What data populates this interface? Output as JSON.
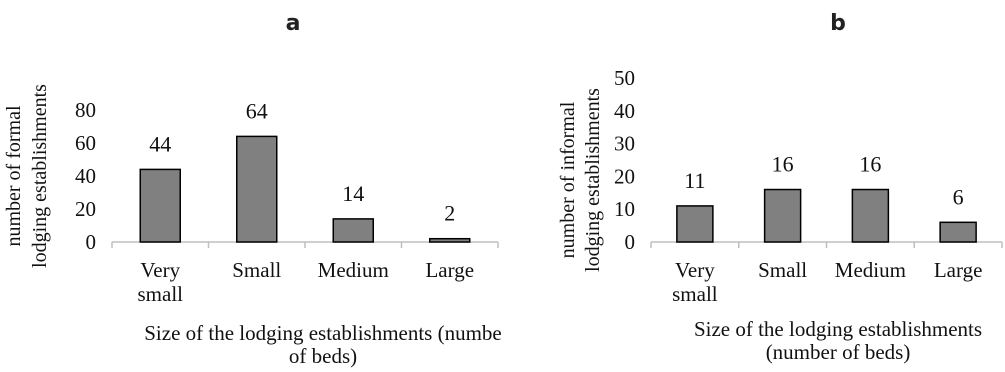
{
  "chart_data": [
    {
      "type": "bar",
      "panel_letter": "a",
      "categories": [
        [
          "Very",
          "small"
        ],
        [
          "Small"
        ],
        [
          "Medium"
        ],
        [
          "Large"
        ]
      ],
      "values": [
        44,
        64,
        14,
        2
      ],
      "data_labels": [
        "44",
        "64",
        "14",
        "2"
      ],
      "ylim": [
        0,
        80
      ],
      "yticks": [
        "0",
        "20",
        "40",
        "60",
        "80"
      ],
      "ylabel": [
        "number of formal",
        "lodging establishments"
      ],
      "xlabel": [
        "Size of the lodging establishments (numbe",
        "of beds)"
      ],
      "bar_color": "#808080"
    },
    {
      "type": "bar",
      "panel_letter": "b",
      "categories": [
        [
          "Very",
          "small"
        ],
        [
          "Small"
        ],
        [
          "Medium"
        ],
        [
          "Large"
        ]
      ],
      "values": [
        11,
        16,
        16,
        6
      ],
      "data_labels": [
        "11",
        "16",
        "16",
        "6"
      ],
      "ylim": [
        0,
        50
      ],
      "yticks": [
        "0",
        "10",
        "20",
        "30",
        "40",
        "50"
      ],
      "ylabel": [
        "number of informal",
        "lodging establishments"
      ],
      "xlabel": [
        "Size of the lodging establishments",
        "(number of beds)"
      ],
      "bar_color": "#808080"
    }
  ]
}
